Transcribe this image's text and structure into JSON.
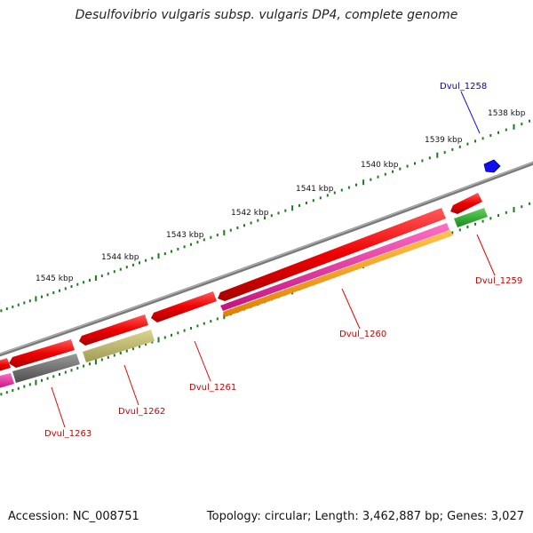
{
  "title": "Desulfovibrio vulgaris subsp. vulgaris DP4, complete genome",
  "footer": {
    "accession": "Accession: NC_008751",
    "summary": "Topology: circular; Length: 3,462,887 bp; Genes: 3,027"
  },
  "colors": {
    "tick": "#1f7a1f",
    "backbone": "#8c8c8c",
    "gene_forward": "#ee0000",
    "gene_blue": "#1010ee",
    "label_red": "#cc0000",
    "label_blue": "#0000cc"
  },
  "ruler_labels": [
    "1538 kbp",
    "1539 kbp",
    "1540 kbp",
    "1541 kbp",
    "1542 kbp",
    "1543 kbp",
    "1544 kbp",
    "1545 kbp"
  ],
  "gene_labels": [
    {
      "id": "Dvul_1258",
      "color": "blue"
    },
    {
      "id": "Dvul_1259",
      "color": "red"
    },
    {
      "id": "Dvul_1260",
      "color": "red"
    },
    {
      "id": "Dvul_1261",
      "color": "red"
    },
    {
      "id": "Dvul_1262",
      "color": "red"
    },
    {
      "id": "Dvul_1263",
      "color": "red"
    }
  ]
}
